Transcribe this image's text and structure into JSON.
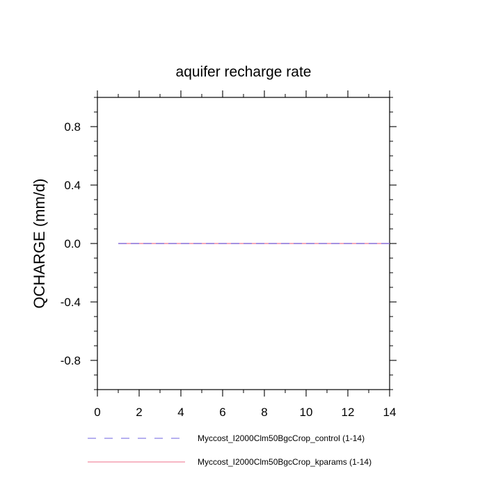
{
  "chart_data": {
    "type": "line",
    "title": "aquifer recharge rate",
    "xlabel": "",
    "ylabel": "QCHARGE  (mm/d)",
    "xlim": [
      0,
      14
    ],
    "ylim": [
      -1,
      1
    ],
    "x_ticks": [
      0,
      2,
      4,
      6,
      8,
      10,
      12,
      14
    ],
    "y_ticks": [
      -0.8,
      -0.4,
      0.0,
      0.4,
      0.8
    ],
    "x_tick_labels": [
      "0",
      "2",
      "4",
      "6",
      "8",
      "10",
      "12",
      "14"
    ],
    "y_tick_labels": [
      "-0.8",
      "-0.4",
      "0.0",
      "0.4",
      "0.8"
    ],
    "grid": false,
    "legend_position": "bottom",
    "x": [
      1,
      2,
      3,
      4,
      5,
      6,
      7,
      8,
      9,
      10,
      11,
      12,
      13,
      14
    ],
    "series": [
      {
        "name": "Myccost_I2000Clm50BgcCrop_control (1-14)",
        "color": "#8a80e6",
        "dash": "dashed",
        "values": [
          0,
          0,
          0,
          0,
          0,
          0,
          0,
          0,
          0,
          0,
          0,
          0,
          0,
          0
        ]
      },
      {
        "name": "Myccost_I2000Clm50BgcCrop_kparams (1-14)",
        "color": "#f08aa0",
        "dash": "solid",
        "values": [
          0,
          0,
          0,
          0,
          0,
          0,
          0,
          0,
          0,
          0,
          0,
          0,
          0,
          0
        ]
      }
    ]
  }
}
